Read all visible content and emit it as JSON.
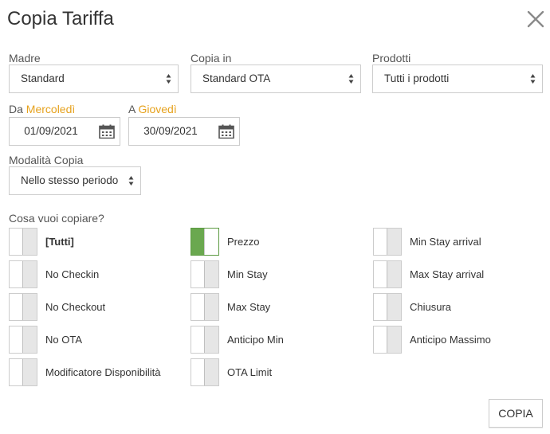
{
  "dialog": {
    "title": "Copia Tariffa"
  },
  "fields": {
    "madre": {
      "label": "Madre",
      "value": "Standard"
    },
    "copia_in": {
      "label": "Copia in",
      "value": "Standard OTA"
    },
    "prodotti": {
      "label": "Prodotti",
      "value": "Tutti i prodotti"
    },
    "da": {
      "label": "Da",
      "day": "Mercoledì",
      "value": "01/09/2021"
    },
    "a": {
      "label": "A",
      "day": "Giovedì",
      "value": "30/09/2021"
    },
    "modalita": {
      "label": "Modalità Copia",
      "value": "Nello stesso periodo"
    }
  },
  "copy_section": {
    "title": "Cosa vuoi copiare?",
    "options": [
      {
        "label": "[Tutti]",
        "checked": false
      },
      {
        "label": "Prezzo",
        "checked": true
      },
      {
        "label": "Min Stay arrival",
        "checked": false
      },
      {
        "label": "No Checkin",
        "checked": false
      },
      {
        "label": "Min Stay",
        "checked": false
      },
      {
        "label": "Max Stay arrival",
        "checked": false
      },
      {
        "label": "No Checkout",
        "checked": false
      },
      {
        "label": "Max Stay",
        "checked": false
      },
      {
        "label": "Chiusura",
        "checked": false
      },
      {
        "label": "No OTA",
        "checked": false
      },
      {
        "label": "Anticipo Min",
        "checked": false
      },
      {
        "label": "Anticipo Massimo",
        "checked": false
      },
      {
        "label": "Modificatore Disponibilità",
        "checked": false
      },
      {
        "label": "OTA Limit",
        "checked": false
      }
    ]
  },
  "actions": {
    "copy_label": "COPIA"
  },
  "colors": {
    "accent": "#e6a21e",
    "toggle_on": "#6aa84f"
  },
  "icons": {
    "close": "close-icon",
    "calendar": "calendar-icon",
    "caret": "select-caret-icon"
  }
}
